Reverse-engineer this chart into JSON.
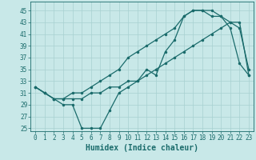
{
  "xlabel": "Humidex (Indice chaleur)",
  "bg_color": "#c8e8e8",
  "line_color": "#1a6b6b",
  "grid_color": "#a8d0d0",
  "font_color": "#1a6b6b",
  "xlim": [
    -0.5,
    23.5
  ],
  "ylim": [
    24.5,
    46.5
  ],
  "yticks": [
    25,
    27,
    29,
    31,
    33,
    35,
    37,
    39,
    41,
    43,
    45
  ],
  "xticks": [
    0,
    1,
    2,
    3,
    4,
    5,
    6,
    7,
    8,
    9,
    10,
    11,
    12,
    13,
    14,
    15,
    16,
    17,
    18,
    19,
    20,
    21,
    22,
    23
  ],
  "line1_x": [
    0,
    1,
    2,
    3,
    4,
    5,
    6,
    7,
    8,
    9,
    10,
    11,
    12,
    13,
    14,
    15,
    16,
    17,
    18,
    19,
    20,
    21,
    22,
    23
  ],
  "line1_y": [
    32,
    31,
    30,
    29,
    29,
    25,
    25,
    25,
    28,
    31,
    32,
    33,
    35,
    34,
    38,
    40,
    44,
    45,
    45,
    44,
    44,
    42,
    36,
    34
  ],
  "line2_x": [
    0,
    1,
    2,
    3,
    4,
    5,
    6,
    7,
    8,
    9,
    10,
    11,
    12,
    13,
    14,
    15,
    16,
    17,
    18,
    19,
    20,
    21,
    22,
    23
  ],
  "line2_y": [
    32,
    31,
    30,
    30,
    30,
    30,
    31,
    31,
    32,
    32,
    33,
    33,
    34,
    35,
    36,
    37,
    38,
    39,
    40,
    41,
    42,
    43,
    43,
    34
  ],
  "line3_x": [
    0,
    1,
    2,
    3,
    4,
    5,
    6,
    7,
    8,
    9,
    10,
    11,
    12,
    13,
    14,
    15,
    16,
    17,
    18,
    19,
    20,
    21,
    22,
    23
  ],
  "line3_y": [
    32,
    31,
    30,
    30,
    31,
    31,
    32,
    33,
    34,
    35,
    37,
    38,
    39,
    40,
    41,
    42,
    44,
    45,
    45,
    45,
    44,
    43,
    42,
    35
  ],
  "markersize": 2.5,
  "linewidth": 0.9,
  "tick_fontsize": 5.5,
  "xlabel_fontsize": 7.0
}
